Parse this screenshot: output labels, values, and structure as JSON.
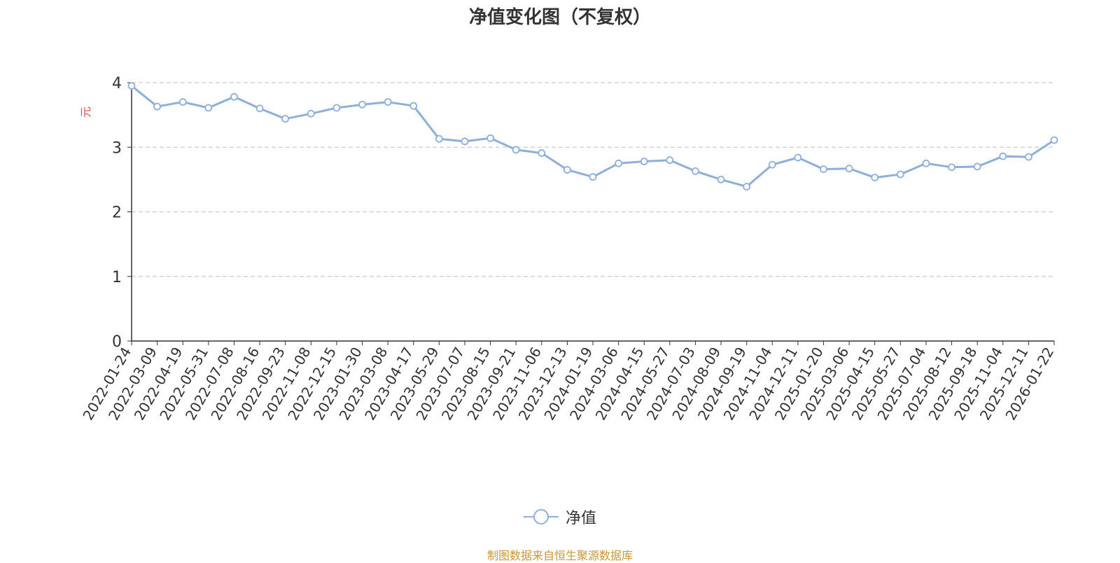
{
  "chart_data": {
    "type": "line",
    "title": "净值变化图（不复权）",
    "ylabel": "元",
    "xlabel": "",
    "ylim": [
      0,
      4
    ],
    "yticks": [
      0,
      1,
      2,
      3,
      4
    ],
    "grid": true,
    "legend_position": "bottom",
    "categories": [
      "2022-01-24",
      "2022-03-09",
      "2022-04-19",
      "2022-05-31",
      "2022-07-08",
      "2022-08-16",
      "2022-09-23",
      "2022-11-08",
      "2022-12-15",
      "2023-01-30",
      "2023-03-08",
      "2023-04-17",
      "2023-05-29",
      "2023-07-07",
      "2023-08-15",
      "2023-09-21",
      "2023-11-06",
      "2023-12-13",
      "2024-01-19",
      "2024-03-06",
      "2024-04-15",
      "2024-05-27",
      "2024-07-03",
      "2024-08-09",
      "2024-09-19",
      "2024-11-04",
      "2024-12-11",
      "2025-01-20",
      "2025-03-06",
      "2025-04-15",
      "2025-05-27",
      "2025-07-04",
      "2025-08-12",
      "2025-09-18",
      "2025-11-04",
      "2025-12-11",
      "2026-01-22"
    ],
    "series": [
      {
        "name": "净值",
        "color": "#8eaedc",
        "values": [
          3.95,
          3.63,
          3.7,
          3.61,
          3.78,
          3.6,
          3.44,
          3.52,
          3.61,
          3.66,
          3.7,
          3.64,
          3.13,
          3.09,
          3.14,
          2.96,
          2.91,
          2.65,
          2.54,
          2.75,
          2.78,
          2.8,
          2.63,
          2.5,
          2.39,
          2.73,
          2.84,
          2.66,
          2.67,
          2.53,
          2.58,
          2.75,
          2.69,
          2.7,
          2.86,
          2.85,
          3.11
        ]
      }
    ]
  },
  "legend": {
    "label": "净值"
  },
  "source_note": "制图数据来自恒生聚源数据库",
  "colors": {
    "line": "#8eaedc",
    "axis": "#333333",
    "grid": "#cccccc",
    "ylabel": "#e84a4a",
    "source": "#c9973a"
  }
}
